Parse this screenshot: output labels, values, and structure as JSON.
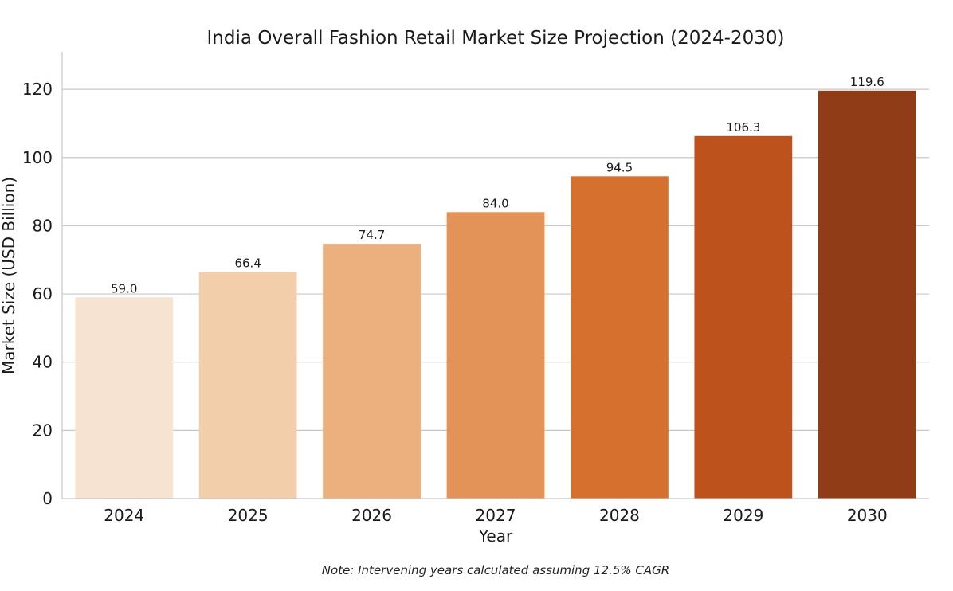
{
  "chart_data": {
    "type": "bar",
    "title": "India Overall Fashion Retail Market Size Projection (2024-2030)",
    "xlabel": "Year",
    "ylabel": "Market Size (USD Billion)",
    "categories": [
      "2024",
      "2025",
      "2026",
      "2027",
      "2028",
      "2029",
      "2030"
    ],
    "values": [
      59.0,
      66.4,
      74.7,
      84.0,
      94.5,
      106.3,
      119.6
    ],
    "value_labels": [
      "59.0",
      "66.4",
      "74.7",
      "84.0",
      "94.5",
      "106.3",
      "119.6"
    ],
    "colors": [
      "#f6e3d1",
      "#f2ceab",
      "#ecb07f",
      "#e49358",
      "#d5702e",
      "#be521c",
      "#8f3c17"
    ],
    "ylim": [
      0,
      131
    ],
    "yticks": [
      0,
      20,
      40,
      60,
      80,
      100,
      120
    ],
    "grid": true,
    "legend": "none",
    "note": "Note: Intervening years calculated assuming 12.5% CAGR"
  }
}
